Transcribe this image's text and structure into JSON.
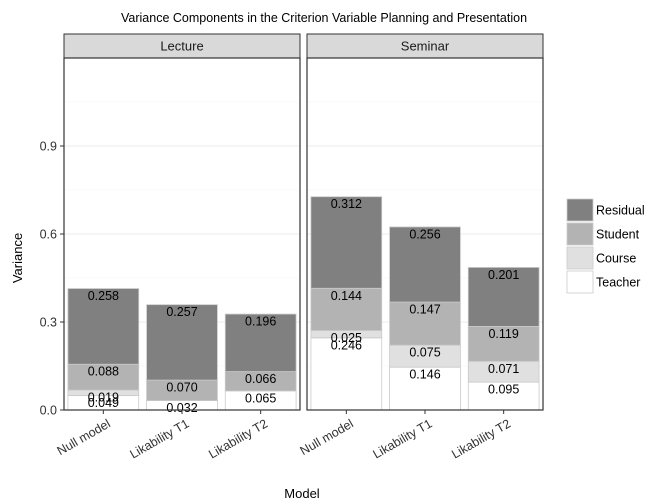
{
  "chart_data": {
    "type": "bar",
    "stacked": true,
    "title": "Variance Components in the Criterion Variable Planning and Presentation",
    "xlabel": "Model",
    "ylabel": "Variance",
    "ylim": [
      0,
      1.2
    ],
    "yticks": [
      "0.0",
      "0.3",
      "0.6",
      "0.9"
    ],
    "ytick_values": [
      0.0,
      0.3,
      0.6,
      0.9
    ],
    "grid": true,
    "legend_position": "right",
    "categories": [
      "Null model",
      "Likability T1",
      "Likability T2"
    ],
    "stack_order": [
      "Teacher",
      "Course",
      "Student",
      "Residual"
    ],
    "legend": [
      {
        "name": "Residual",
        "color": "#808080"
      },
      {
        "name": "Student",
        "color": "#b3b3b3"
      },
      {
        "name": "Course",
        "color": "#e0e0e0"
      },
      {
        "name": "Teacher",
        "color": "#ffffff"
      }
    ],
    "panels": [
      {
        "title": "Lecture",
        "bars": [
          {
            "category": "Null model",
            "Teacher": 0.049,
            "Course": 0.019,
            "Student": 0.088,
            "Residual": 0.258,
            "labels": {
              "Teacher": "0.049",
              "Course": "0.019",
              "Student": "0.088",
              "Residual": "0.258"
            }
          },
          {
            "category": "Likability T1",
            "Teacher": 0.032,
            "Course": 0.0,
            "Student": 0.07,
            "Residual": 0.257,
            "labels": {
              "Teacher": "0.032",
              "Student": "0.070",
              "Residual": "0.257"
            }
          },
          {
            "category": "Likability T2",
            "Teacher": 0.065,
            "Course": 0.0,
            "Student": 0.066,
            "Residual": 0.196,
            "labels": {
              "Teacher": "0.065",
              "Student": "0.066",
              "Residual": "0.196"
            }
          }
        ]
      },
      {
        "title": "Seminar",
        "bars": [
          {
            "category": "Null model",
            "Teacher": 0.246,
            "Course": 0.025,
            "Student": 0.144,
            "Residual": 0.312,
            "labels": {
              "Teacher": "0.246",
              "Course": "0.025",
              "Student": "0.144",
              "Residual": "0.312"
            }
          },
          {
            "category": "Likability T1",
            "Teacher": 0.146,
            "Course": 0.075,
            "Student": 0.147,
            "Residual": 0.256,
            "labels": {
              "Teacher": "0.146",
              "Course": "0.075",
              "Student": "0.147",
              "Residual": "0.256"
            }
          },
          {
            "category": "Likability T2",
            "Teacher": 0.095,
            "Course": 0.071,
            "Student": 0.119,
            "Residual": 0.201,
            "labels": {
              "Teacher": "0.095",
              "Course": "0.071",
              "Student": "0.119",
              "Residual": "0.201"
            }
          }
        ]
      }
    ]
  }
}
